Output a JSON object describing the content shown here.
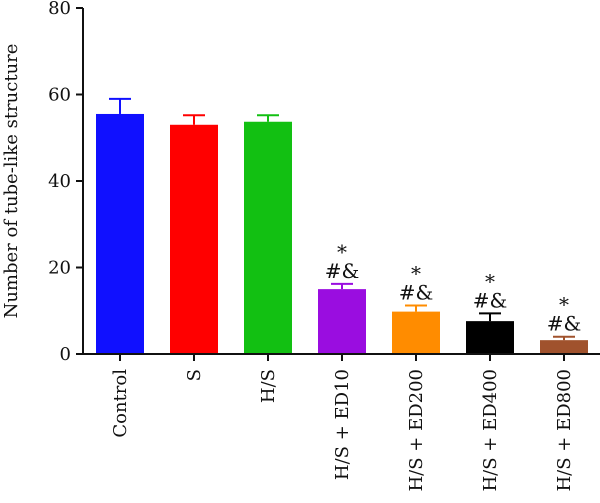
{
  "chart_data": {
    "type": "bar",
    "title": "",
    "xlabel": "",
    "ylabel": "Number of tube-like structure",
    "ylim": [
      0,
      80
    ],
    "yticks": [
      0,
      20,
      40,
      60,
      80
    ],
    "categories": [
      "Control",
      "S",
      "H/S",
      "H/S + ED10",
      "H/S + ED200",
      "H/S + ED400",
      "H/S + ED800"
    ],
    "values": [
      55.5,
      53,
      53.7,
      15,
      9.8,
      7.6,
      3.2
    ],
    "errors": [
      3.5,
      2.2,
      1.5,
      1.2,
      1.4,
      1.8,
      0.8
    ],
    "colors": [
      "#1010ff",
      "#ff0000",
      "#12c012",
      "#9a0de0",
      "#ff8c00",
      "#000000",
      "#a0522d"
    ],
    "annotations": [
      {
        "category": "H/S + ED10",
        "lines": [
          "*",
          "#&"
        ]
      },
      {
        "category": "H/S + ED200",
        "lines": [
          "*",
          "#&"
        ]
      },
      {
        "category": "H/S + ED400",
        "lines": [
          "*",
          "#&"
        ]
      },
      {
        "category": "H/S + ED800",
        "lines": [
          "*",
          "#&"
        ]
      }
    ],
    "grid": false,
    "legend": "none"
  }
}
